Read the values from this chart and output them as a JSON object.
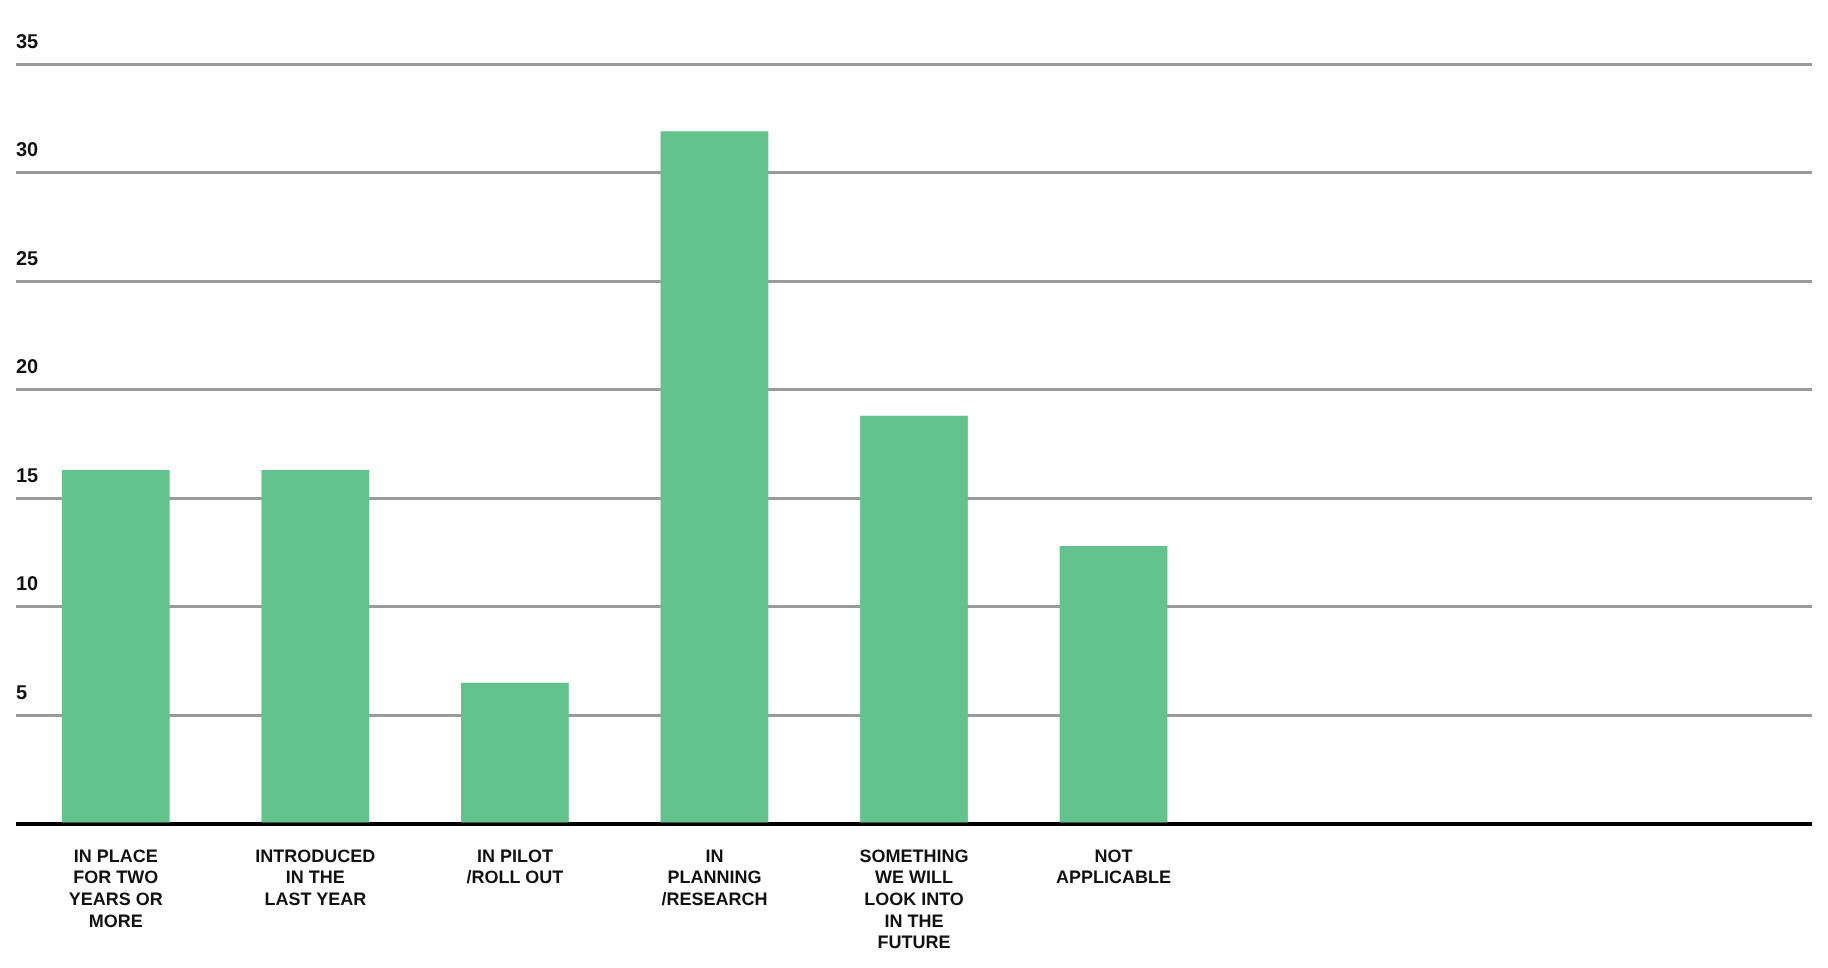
{
  "chart_data": {
    "type": "bar",
    "categories": [
      "IN PLACE FOR TWO YEARS OR MORE",
      "INTRODUCED IN THE LAST YEAR",
      "IN PILOT /ROLL OUT",
      "IN PLANNING /RESEARCH",
      "SOMETHING WE WILL LOOK INTO IN THE FUTURE",
      "NOT APPLICABLE",
      null,
      null,
      null
    ],
    "values": [
      16.3,
      16.3,
      6.5,
      31.9,
      18.8,
      12.8,
      null,
      null,
      null
    ],
    "color": "#64c38c",
    "ylim": [
      0,
      35
    ],
    "yticks": [
      {
        "value": 0,
        "label": null
      },
      5,
      10,
      15,
      20,
      25,
      30,
      35
    ],
    "grid": "y",
    "legend": false
  }
}
